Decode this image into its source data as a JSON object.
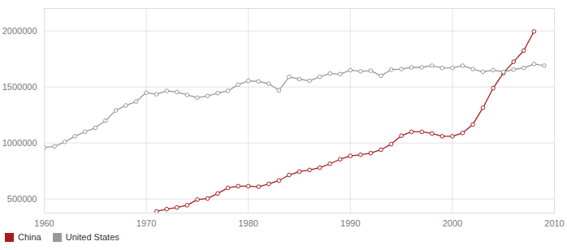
{
  "chart_data": {
    "type": "line",
    "x": [
      1960,
      1961,
      1962,
      1963,
      1964,
      1965,
      1966,
      1967,
      1968,
      1969,
      1970,
      1971,
      1972,
      1973,
      1974,
      1975,
      1976,
      1977,
      1978,
      1979,
      1980,
      1981,
      1982,
      1983,
      1984,
      1985,
      1986,
      1987,
      1988,
      1989,
      1990,
      1991,
      1992,
      1993,
      1994,
      1995,
      1996,
      1997,
      1998,
      1999,
      2000,
      2001,
      2002,
      2003,
      2004,
      2005,
      2006,
      2007,
      2008,
      2009
    ],
    "series": [
      {
        "name": "China",
        "color": "#a61c1c",
        "marker": "circle",
        "values": [
          null,
          null,
          null,
          null,
          null,
          null,
          null,
          null,
          null,
          null,
          null,
          390000,
          410000,
          425000,
          445000,
          495000,
          505000,
          550000,
          600000,
          615000,
          615000,
          610000,
          635000,
          665000,
          715000,
          745000,
          760000,
          780000,
          815000,
          855000,
          885000,
          895000,
          910000,
          940000,
          990000,
          1065000,
          1100000,
          1100000,
          1085000,
          1060000,
          1060000,
          1090000,
          1165000,
          1315000,
          1490000,
          1625000,
          1725000,
          1825000,
          1995000,
          null
        ]
      },
      {
        "name": "United States",
        "color": "#999999",
        "marker": "circle",
        "values": [
          960000,
          970000,
          1010000,
          1060000,
          1100000,
          1135000,
          1200000,
          1290000,
          1335000,
          1370000,
          1450000,
          1435000,
          1465000,
          1455000,
          1430000,
          1405000,
          1420000,
          1445000,
          1465000,
          1520000,
          1555000,
          1550000,
          1530000,
          1470000,
          1590000,
          1570000,
          1555000,
          1590000,
          1620000,
          1615000,
          1650000,
          1640000,
          1645000,
          1600000,
          1655000,
          1660000,
          1675000,
          1675000,
          1690000,
          1670000,
          1670000,
          1690000,
          1660000,
          1635000,
          1650000,
          1635000,
          1655000,
          1670000,
          1705000,
          1690000
        ]
      }
    ],
    "xlim": [
      1960,
      2010
    ],
    "xticks": [
      1960,
      1970,
      1980,
      1990,
      2000,
      2010
    ],
    "ylim": [
      375000,
      2200000
    ],
    "yticks": [
      500000,
      1000000,
      1500000,
      2000000
    ],
    "grid": true,
    "legend": "bottom"
  }
}
